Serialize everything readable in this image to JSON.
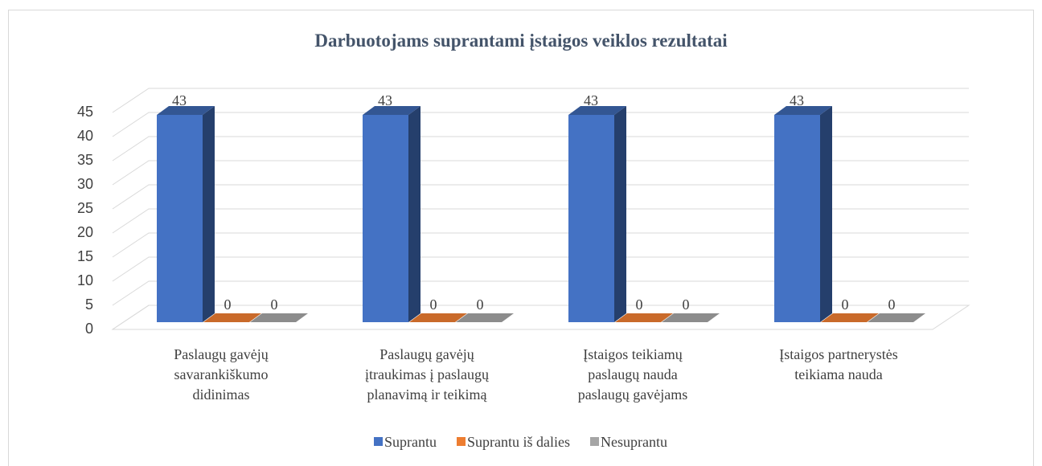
{
  "chart_data": {
    "type": "bar3d",
    "title": "Darbuotojams suprantami įstaigos veiklos rezultatai",
    "categories": [
      "Paslaugų gavėjų savarankiškumo didinimas",
      "Paslaugų gavėjų įtraukimas į paslaugų planavimą ir teikimą",
      "Įstaigos teikiamų paslaugų nauda paslaugų gavėjams",
      "Įstaigos partnerystės teikiama nauda"
    ],
    "series": [
      {
        "name": "Suprantu",
        "color": "#4472c4",
        "values": [
          43,
          43,
          43,
          43
        ]
      },
      {
        "name": "Suprantu iš dalies",
        "color": "#ed7d31",
        "values": [
          0,
          0,
          0,
          0
        ]
      },
      {
        "name": "Nesuprantu",
        "color": "#a5a5a5",
        "values": [
          0,
          0,
          0,
          0
        ]
      }
    ],
    "ylim": [
      0,
      45
    ],
    "yticks": [
      0,
      5,
      10,
      15,
      20,
      25,
      30,
      35,
      40,
      45
    ],
    "grid": true,
    "legend": "bottom"
  }
}
